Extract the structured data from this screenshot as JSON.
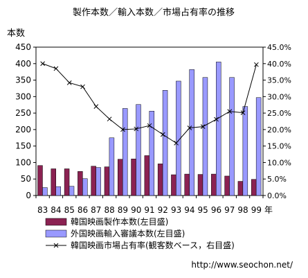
{
  "chart_data": {
    "type": "bar",
    "title": "製作本数／輸入本数／市場占有率の推移",
    "left_axis_label": "本数",
    "x_unit_label": "年",
    "categories": [
      "83",
      "84",
      "85",
      "86",
      "87",
      "88",
      "89",
      "90",
      "91",
      "92",
      "93",
      "94",
      "95",
      "96",
      "97",
      "98",
      "99"
    ],
    "y_left": {
      "min": 0,
      "max": 450,
      "ticks": [
        "0",
        "50",
        "100",
        "150",
        "200",
        "250",
        "300",
        "350",
        "400",
        "450"
      ]
    },
    "y_right": {
      "min": 0,
      "max": 45,
      "ticks": [
        "0.0%",
        "5.0%",
        "10.0%",
        "15.0%",
        "20.0%",
        "25.0%",
        "30.0%",
        "35.0%",
        "40.0%",
        "45.0%"
      ]
    },
    "series": [
      {
        "name": "韓国映画製作本数(左目盛)",
        "type": "bar",
        "axis": "left",
        "color": "#8b2252",
        "values": [
          91,
          81,
          81,
          73,
          89,
          87,
          110,
          111,
          121,
          96,
          63,
          65,
          64,
          65,
          59,
          43,
          49
        ]
      },
      {
        "name": "外国映画輸入審議本数(左目盛)",
        "type": "bar",
        "axis": "left",
        "color": "#9999ff",
        "values": [
          24,
          27,
          28,
          51,
          85,
          175,
          264,
          276,
          256,
          319,
          347,
          382,
          358,
          405,
          358,
          270,
          297
        ]
      },
      {
        "name": "韓国映画市場占有率(観客数ベース，右目盛)",
        "type": "line",
        "axis": "right",
        "color": "#000000",
        "values": [
          40.0,
          38.5,
          34.2,
          33.0,
          27.0,
          23.2,
          20.0,
          20.2,
          21.2,
          18.5,
          15.9,
          20.5,
          20.9,
          23.1,
          25.5,
          25.1,
          39.7
        ]
      }
    ],
    "legend_position": "bottom",
    "grid": false
  },
  "footer": {
    "url": "http://www.seochon.net/"
  }
}
